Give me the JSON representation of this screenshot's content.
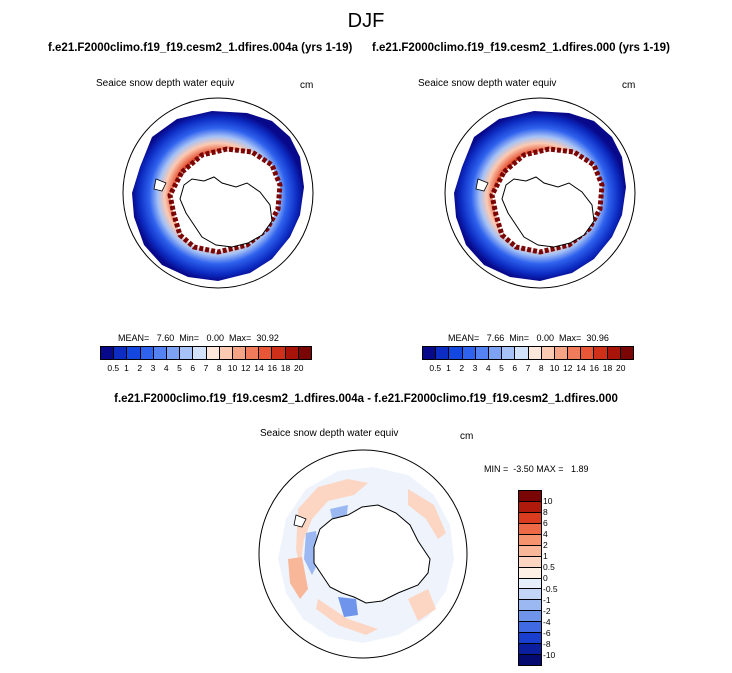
{
  "season": "DJF",
  "case_a_title": "f.e21.F2000climo.f19_f19.cesm2_1.dfires.004a (yrs 1-19)",
  "case_b_title": "f.e21.F2000climo.f19_f19.cesm2_1.dfires.000 (yrs 1-19)",
  "diff_title": "f.e21.F2000climo.f19_f19.cesm2_1.dfires.004a - f.e21.F2000climo.f19_f19.cesm2_1.dfires.000",
  "variable": "Seaice snow depth water equiv",
  "units": "cm",
  "panel_a": {
    "stats": "MEAN=   7.60  Min=   0.00  Max=  30.92"
  },
  "panel_b": {
    "stats": "MEAN=   7.66  Min=   0.00  Max=  30.96"
  },
  "panel_diff": {
    "stats": "MIN =  -3.50 MAX =   1.89"
  },
  "colorbar_main": {
    "labels": [
      "0.5",
      "1",
      "2",
      "3",
      "4",
      "5",
      "6",
      "7",
      "8",
      "10",
      "12",
      "14",
      "16",
      "18",
      "20"
    ],
    "colors": [
      "#08088a",
      "#0c2cc2",
      "#1446e0",
      "#2f62ee",
      "#5582f2",
      "#7da2f4",
      "#a6c2f6",
      "#d2e2fa",
      "#fde6da",
      "#fbcab2",
      "#f6a486",
      "#f07c5c",
      "#e65637",
      "#cf3019",
      "#a8140a",
      "#7a0505"
    ]
  },
  "colorbar_diff": {
    "labels": [
      "10",
      "8",
      "6",
      "4",
      "2",
      "1",
      "0.5",
      "0",
      "-0.5",
      "-1",
      "-2",
      "-4",
      "-6",
      "-8",
      "-10"
    ],
    "colors": [
      "#7a0505",
      "#b01a0c",
      "#d93c1e",
      "#ee6a46",
      "#f5936f",
      "#f9b799",
      "#fcd6c3",
      "#fff0e6",
      "#e6eefb",
      "#c4d6f7",
      "#9cb8f2",
      "#6e94ec",
      "#3f6ae4",
      "#1a3fcf",
      "#0a1e9e",
      "#050a70"
    ]
  }
}
